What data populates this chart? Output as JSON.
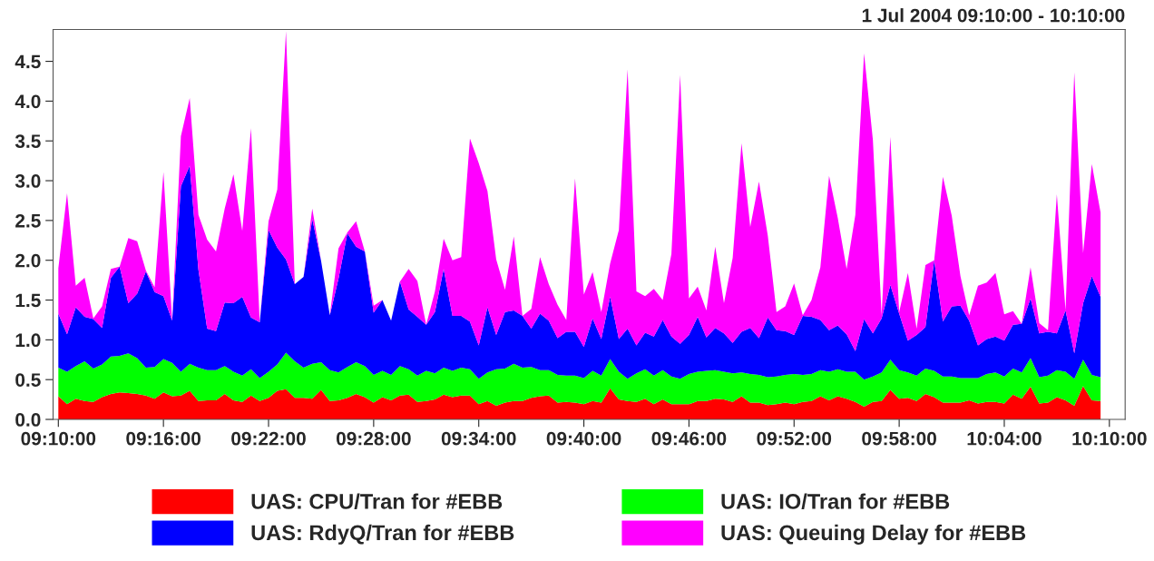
{
  "chart_data": {
    "type": "area",
    "stacked": true,
    "title": "1 Jul 2004 09:10:00 - 10:10:00",
    "legend": "bottom",
    "grid": false,
    "x": [
      9.1667,
      9.175,
      9.1833,
      9.1917,
      9.2,
      9.2083,
      9.2167,
      9.225,
      9.2333,
      9.2417,
      9.25,
      9.2583,
      9.2667,
      9.275,
      9.2833,
      9.2917,
      9.3,
      9.3083,
      9.3167,
      9.325,
      9.3333,
      9.3417,
      9.35,
      9.3583,
      9.3667,
      9.375,
      9.3833,
      9.3917,
      9.4,
      9.4083,
      9.4167,
      9.425,
      9.4333,
      9.4417,
      9.45,
      9.4583,
      9.4667,
      9.475,
      9.4833,
      9.4917,
      9.5,
      9.5083,
      9.5167,
      9.525,
      9.5333,
      9.5417,
      9.55,
      9.5583,
      9.5667,
      9.575,
      9.5833,
      9.5917,
      9.6,
      9.6083,
      9.6167,
      9.625,
      9.6333,
      9.6417,
      9.65,
      9.6583,
      9.6667,
      9.675,
      9.6833,
      9.6917,
      9.7,
      9.7083,
      9.7167,
      9.725,
      9.7333,
      9.7417,
      9.75,
      9.7583,
      9.7667,
      9.775,
      9.7833,
      9.7917,
      9.8,
      9.8083,
      9.8167,
      9.825,
      9.8333,
      9.8417,
      9.85,
      9.8583,
      9.8667,
      9.875,
      9.8833,
      9.8917,
      9.9,
      9.9083,
      9.9167,
      9.925,
      9.9333,
      9.9417,
      9.95,
      9.9583,
      9.9667,
      9.975,
      9.9833,
      9.9917,
      10,
      10.0083,
      10.0167,
      10.025,
      10.0333,
      10.0417,
      10.05,
      10.0583,
      10.0667,
      10.075,
      10.0833,
      10.0917,
      10.1,
      10.1083,
      10.1167,
      10.125,
      10.1333,
      10.1417,
      10.15,
      10.1583
    ],
    "xlim": [
      9.1617,
      10.1817
    ],
    "xticks": [
      {
        "value": 9.1667,
        "label": "09:10:00"
      },
      {
        "value": 9.2667,
        "label": "09:16:00"
      },
      {
        "value": 9.3667,
        "label": "09:22:00"
      },
      {
        "value": 9.4667,
        "label": "09:28:00"
      },
      {
        "value": 9.5667,
        "label": "09:34:00"
      },
      {
        "value": 9.6667,
        "label": "09:40:00"
      },
      {
        "value": 9.7667,
        "label": "09:46:00"
      },
      {
        "value": 9.8667,
        "label": "09:52:00"
      },
      {
        "value": 9.9667,
        "label": "09:58:00"
      },
      {
        "value": 10.0667,
        "label": "10:04:00"
      },
      {
        "value": 10.1667,
        "label": "10:10:00"
      }
    ],
    "ylim": [
      0,
      4.9
    ],
    "yticks": [
      {
        "value": 0,
        "label": "0.0"
      },
      {
        "value": 0.5,
        "label": "0.5"
      },
      {
        "value": 1,
        "label": "1.0"
      },
      {
        "value": 1.5,
        "label": "1.5"
      },
      {
        "value": 2,
        "label": "2.0"
      },
      {
        "value": 2.5,
        "label": "2.5"
      },
      {
        "value": 3,
        "label": "3.0"
      },
      {
        "value": 3.5,
        "label": "3.5"
      },
      {
        "value": 4,
        "label": "4.0"
      },
      {
        "value": 4.5,
        "label": "4.5"
      }
    ],
    "series": [
      {
        "name": "UAS: CPU/Tran for #EBB",
        "color": "#ff0000",
        "values": [
          0.29,
          0.19,
          0.26,
          0.23,
          0.22,
          0.28,
          0.32,
          0.34,
          0.33,
          0.32,
          0.3,
          0.26,
          0.34,
          0.29,
          0.3,
          0.36,
          0.23,
          0.24,
          0.24,
          0.32,
          0.24,
          0.22,
          0.3,
          0.23,
          0.27,
          0.36,
          0.38,
          0.27,
          0.27,
          0.26,
          0.37,
          0.23,
          0.24,
          0.27,
          0.32,
          0.28,
          0.21,
          0.28,
          0.24,
          0.3,
          0.31,
          0.22,
          0.23,
          0.25,
          0.31,
          0.28,
          0.3,
          0.3,
          0.19,
          0.23,
          0.17,
          0.21,
          0.23,
          0.23,
          0.27,
          0.29,
          0.3,
          0.21,
          0.22,
          0.21,
          0.19,
          0.23,
          0.21,
          0.39,
          0.25,
          0.23,
          0.22,
          0.26,
          0.19,
          0.25,
          0.19,
          0.19,
          0.19,
          0.23,
          0.23,
          0.26,
          0.25,
          0.22,
          0.29,
          0.21,
          0.21,
          0.18,
          0.19,
          0.21,
          0.19,
          0.22,
          0.23,
          0.29,
          0.24,
          0.29,
          0.26,
          0.22,
          0.16,
          0.22,
          0.23,
          0.37,
          0.26,
          0.27,
          0.23,
          0.32,
          0.28,
          0.21,
          0.21,
          0.21,
          0.24,
          0.2,
          0.22,
          0.22,
          0.2,
          0.31,
          0.26,
          0.41,
          0.2,
          0.21,
          0.28,
          0.24,
          0.17,
          0.42,
          0.24,
          0.23
        ]
      },
      {
        "name": "UAS: IO/Tran for #EBB",
        "color": "#00ff00",
        "values": [
          0.36,
          0.41,
          0.41,
          0.5,
          0.42,
          0.41,
          0.47,
          0.46,
          0.5,
          0.45,
          0.35,
          0.4,
          0.42,
          0.42,
          0.3,
          0.34,
          0.42,
          0.38,
          0.38,
          0.35,
          0.36,
          0.33,
          0.33,
          0.29,
          0.33,
          0.33,
          0.46,
          0.46,
          0.38,
          0.44,
          0.35,
          0.39,
          0.35,
          0.39,
          0.4,
          0.39,
          0.35,
          0.33,
          0.32,
          0.37,
          0.32,
          0.33,
          0.38,
          0.33,
          0.34,
          0.33,
          0.35,
          0.33,
          0.32,
          0.36,
          0.46,
          0.43,
          0.47,
          0.42,
          0.39,
          0.33,
          0.32,
          0.35,
          0.33,
          0.34,
          0.33,
          0.38,
          0.34,
          0.37,
          0.35,
          0.28,
          0.36,
          0.37,
          0.36,
          0.37,
          0.35,
          0.32,
          0.38,
          0.37,
          0.38,
          0.36,
          0.35,
          0.36,
          0.3,
          0.36,
          0.35,
          0.35,
          0.35,
          0.35,
          0.38,
          0.34,
          0.34,
          0.33,
          0.36,
          0.34,
          0.34,
          0.38,
          0.34,
          0.32,
          0.36,
          0.38,
          0.36,
          0.32,
          0.32,
          0.32,
          0.33,
          0.33,
          0.33,
          0.31,
          0.28,
          0.32,
          0.35,
          0.37,
          0.34,
          0.33,
          0.33,
          0.36,
          0.33,
          0.34,
          0.34,
          0.36,
          0.34,
          0.33,
          0.32,
          0.3
        ]
      },
      {
        "name": "UAS: RdyQ/Tran for #EBB",
        "color": "#0000ff",
        "values": [
          0.68,
          0.47,
          0.74,
          0.56,
          0.62,
          0.46,
          0.99,
          1.12,
          0.63,
          0.81,
          1.21,
          0.94,
          0.79,
          0.53,
          2.33,
          2.49,
          1.23,
          0.52,
          0.49,
          0.8,
          0.86,
          0.99,
          0.65,
          0.7,
          1.78,
          1.47,
          1.17,
          0.97,
          1.14,
          1.82,
          1.27,
          0.69,
          1.18,
          1.68,
          1.45,
          1.44,
          0.78,
          0.89,
          0.68,
          1.06,
          0.75,
          0.74,
          0.58,
          0.77,
          1.24,
          0.69,
          0.65,
          0.6,
          0.42,
          0.82,
          0.43,
          0.71,
          0.67,
          0.65,
          0.48,
          0.71,
          0.62,
          0.46,
          0.55,
          0.55,
          0.39,
          0.66,
          0.46,
          0.78,
          0.41,
          0.63,
          0.35,
          0.46,
          0.49,
          0.63,
          0.5,
          0.44,
          0.49,
          0.69,
          0.42,
          0.53,
          0.48,
          0.38,
          0.51,
          0.58,
          0.46,
          0.75,
          0.58,
          0.55,
          0.49,
          0.74,
          0.72,
          0.63,
          0.52,
          0.55,
          0.47,
          0.26,
          0.76,
          0.54,
          0.68,
          0.94,
          0.71,
          0.4,
          0.51,
          0.52,
          1.39,
          0.69,
          0.88,
          0.91,
          0.72,
          0.41,
          0.44,
          0.45,
          0.45,
          0.55,
          0.61,
          0.75,
          0.55,
          0.55,
          0.46,
          0.77,
          0.32,
          0.71,
          1.24,
          1.01
        ]
      },
      {
        "name": "UAS: Queuing Delay for #EBB",
        "color": "#ff00ff",
        "values": [
          0.57,
          1.77,
          0.27,
          0.49,
          0.01,
          0.27,
          0.11,
          0,
          0.82,
          0.66,
          0.01,
          0.06,
          1.56,
          0,
          0.63,
          0.85,
          0.69,
          1.12,
          1.0,
          1.18,
          1.62,
          0.83,
          2.38,
          0,
          0.11,
          0.73,
          2.87,
          0,
          0,
          0.13,
          0,
          0,
          0.38,
          0.01,
          0.32,
          0,
          0.09,
          0,
          0,
          0,
          0.51,
          0.45,
          0,
          0.26,
          0.38,
          0.7,
          0.74,
          2.3,
          2.29,
          1.46,
          0.95,
          0.28,
          0.93,
          0,
          0.25,
          0.71,
          0.46,
          0.42,
          0.15,
          1.93,
          0.66,
          0.58,
          0.34,
          0.42,
          1.37,
          3.26,
          0.68,
          0.46,
          0.6,
          0.25,
          1.04,
          3.38,
          0.46,
          0.38,
          0.34,
          1.02,
          0.38,
          1.07,
          2.37,
          1.27,
          1.97,
          1.03,
          0.23,
          0.31,
          0.65,
          0.01,
          0.21,
          0.66,
          1.94,
          1.35,
          0.82,
          1.71,
          3.34,
          2.43,
          0.04,
          1.86,
          0.02,
          0.85,
          0.08,
          0.78,
          0,
          1.82,
          1.14,
          0.37,
          0.07,
          0.75,
          0.71,
          0.8,
          0.33,
          0.17,
          0,
          0.39,
          0.13,
          0.02,
          1.75,
          0,
          3.53,
          0.63,
          1.41,
          1.06
        ]
      }
    ]
  }
}
